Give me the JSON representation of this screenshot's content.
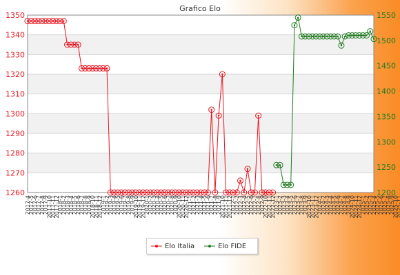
{
  "chart_data": {
    "type": "line",
    "title": "Grafico Elo",
    "xlabel": "",
    "ylabel": "",
    "grid": true,
    "legend_position": "bottom",
    "y_left": {
      "min": 1260,
      "max": 1350,
      "ticks": [
        1260,
        1270,
        1280,
        1290,
        1300,
        1310,
        1320,
        1330,
        1340,
        1350
      ]
    },
    "y_right": {
      "min": 1200,
      "max": 1550,
      "ticks": [
        1200,
        1250,
        1300,
        1350,
        1400,
        1450,
        1500,
        1550
      ]
    },
    "x_range": [
      0,
      96
    ],
    "x_first_label": "2017-4",
    "x_last_label": "2025-12",
    "x_tick_labels": [
      "2017-4",
      "2017-5",
      "2017-6",
      "2017-7",
      "2017-8",
      "2017-9",
      "2017-10",
      "2017-11",
      "2017-12",
      "2018-1",
      "2018-2",
      "2018-3",
      "2018-4",
      "2018-5",
      "2018-6",
      "2018-7",
      "2018-8",
      "2018-9",
      "2018-10",
      "2018-11",
      "2018-12",
      "2019-1",
      "2019-2",
      "2019-3",
      "2019-4",
      "2019-5",
      "2019-6",
      "2019-7",
      "2019-8",
      "2019-9",
      "2019-10",
      "2019-11",
      "2019-12",
      "2020-1",
      "2020-2",
      "2020-3",
      "2020-4",
      "2020-5",
      "2020-6",
      "2020-7",
      "2020-8",
      "2020-9",
      "2020-10",
      "2020-11",
      "2020-12",
      "2021-1",
      "2021-2",
      "2021-3",
      "2021-4",
      "2021-5",
      "2021-6",
      "2021-7",
      "2021-8",
      "2021-9",
      "2021-10",
      "2021-11",
      "2021-12",
      "2022-1",
      "2022-2",
      "2022-3",
      "2022-4",
      "2022-5",
      "2022-6",
      "2022-7",
      "2022-8",
      "2022-9",
      "2022-10",
      "2022-11",
      "2022-12",
      "2023-1",
      "2023-2",
      "2023-3",
      "2023-4",
      "2023-5",
      "2023-6",
      "2023-7",
      "2023-8",
      "2023-9",
      "2023-10",
      "2023-11",
      "2023-12",
      "2024-1",
      "2024-2",
      "2024-3",
      "2024-4",
      "2024-5",
      "2024-6",
      "2024-7",
      "2024-8",
      "2024-9",
      "2024-10",
      "2024-11",
      "2024-12",
      "2025-1",
      "2025-2",
      "2025-3",
      "2025-4",
      "2025-5",
      "2025-6",
      "2025-7",
      "2025-8",
      "2025-9",
      "2025-10",
      "2025-11",
      "2025-12"
    ],
    "series": [
      {
        "name": "Elo Italia",
        "color": "#e8141e",
        "axis": "left",
        "x": [
          0,
          1,
          2,
          3,
          4,
          5,
          6,
          7,
          8,
          9,
          10,
          11,
          12,
          13,
          14,
          15,
          16,
          17,
          18,
          19,
          20,
          21,
          22,
          23,
          24,
          25,
          26,
          27,
          28,
          29,
          30,
          31,
          32,
          33,
          34,
          35,
          36,
          37,
          38,
          39,
          40,
          41,
          42,
          43,
          44,
          45,
          46,
          47,
          48,
          49,
          50,
          51,
          52,
          53,
          54,
          55,
          56,
          57,
          58,
          59,
          60,
          61,
          62,
          63,
          64,
          65,
          66,
          67,
          68
        ],
        "values": [
          1347,
          1347,
          1347,
          1347,
          1347,
          1347,
          1347,
          1347,
          1347,
          1347,
          1347,
          1335,
          1335,
          1335,
          1335,
          1323,
          1323,
          1323,
          1323,
          1323,
          1323,
          1323,
          1323,
          1260,
          1260,
          1260,
          1260,
          1260,
          1260,
          1260,
          1260,
          1260,
          1260,
          1260,
          1260,
          1260,
          1260,
          1260,
          1260,
          1260,
          1260,
          1260,
          1260,
          1260,
          1260,
          1260,
          1260,
          1260,
          1260,
          1260,
          1260,
          1302,
          1260,
          1299,
          1320,
          1260,
          1260,
          1260,
          1260,
          1266,
          1260,
          1272,
          1260,
          1260,
          1299,
          1260,
          1260,
          1260,
          1260
        ]
      },
      {
        "name": "Elo FIDE",
        "color": "#1e7a1e",
        "axis": "right",
        "x": [
          69,
          70,
          71,
          72,
          73,
          74,
          75,
          76,
          77,
          78,
          79,
          80,
          81,
          82,
          83,
          84,
          85,
          86,
          87,
          88,
          89,
          90,
          91,
          92,
          93,
          94,
          95,
          96
        ],
        "values": [
          1254,
          1254,
          1215,
          1215,
          1215,
          1530,
          1545,
          1508,
          1508,
          1508,
          1508,
          1508,
          1508,
          1508,
          1508,
          1508,
          1508,
          1508,
          1490,
          1508,
          1510,
          1510,
          1510,
          1510,
          1510,
          1510,
          1518,
          1503
        ]
      }
    ]
  }
}
